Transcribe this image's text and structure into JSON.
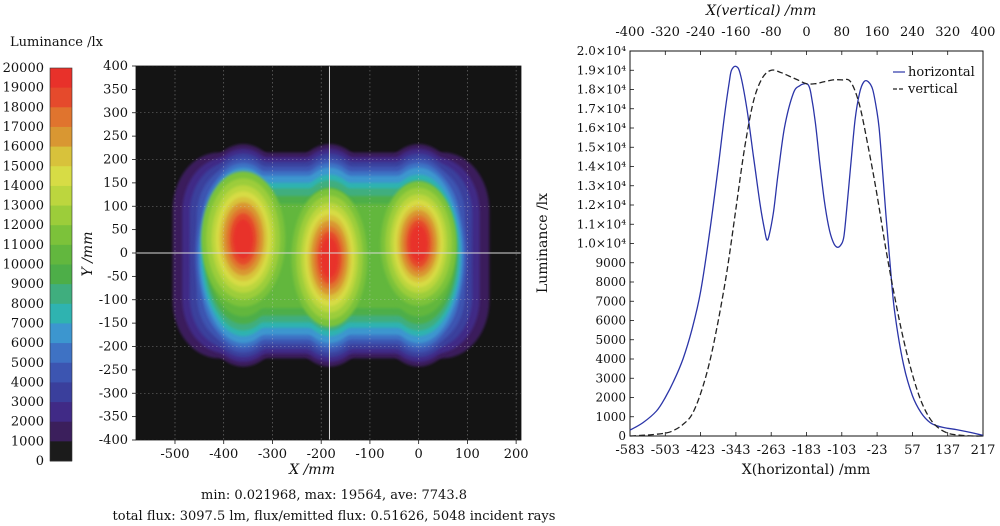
{
  "chart_data": [
    {
      "type": "heatmap",
      "colorbar": {
        "title": "Luminance /lx",
        "ticks": [
          20000,
          19000,
          18000,
          17000,
          16000,
          15000,
          14000,
          13000,
          12000,
          11000,
          10000,
          9000,
          8000,
          7000,
          6000,
          5000,
          4000,
          3000,
          2000,
          1000,
          0
        ],
        "colors": [
          "#e8312a",
          "#e54a2c",
          "#e0742e",
          "#d99732",
          "#d8c23b",
          "#d7dc45",
          "#bcd63e",
          "#9ccd3a",
          "#7cc23a",
          "#62b73e",
          "#4dae48",
          "#3fae7e",
          "#2fb3b0",
          "#3c96cf",
          "#3e72c4",
          "#3c55b1",
          "#3a3f9c",
          "#402a86",
          "#3b1f5c",
          "#1b1b1b"
        ]
      },
      "xlabel": "X /mm",
      "ylabel": "Y /mm",
      "xlim": [
        -580,
        210
      ],
      "ylim": [
        -400,
        400
      ],
      "xticks": [
        "-500",
        "-400",
        "-300",
        "-200",
        "-100",
        "0",
        "100",
        "200"
      ],
      "yticks": [
        "400",
        "350",
        "300",
        "250",
        "200",
        "150",
        "100",
        "50",
        "0",
        "-50",
        "-100",
        "-150",
        "-200",
        "-250",
        "-300",
        "-350",
        "-400"
      ],
      "hotspots": [
        {
          "x": -360,
          "y": 30,
          "peak": 19564
        },
        {
          "x": -183,
          "y": 0,
          "peak": 18500
        },
        {
          "x": 0,
          "y": 20,
          "peak": 18400
        }
      ],
      "stats_line1": "min: 0.021968, max: 19564, ave: 7743.8",
      "stats_line2": "total flux: 3097.5 lm, flux/emitted flux: 0.51626, 5048 incident rays"
    },
    {
      "type": "line",
      "top_xlabel": "X(vertical) /mm",
      "xlabel": "X(horizontal) /mm",
      "ylabel": "Luminance /lx",
      "xlim": [
        -583,
        217
      ],
      "top_xlim": [
        -400,
        400
      ],
      "ylim": [
        0,
        20000
      ],
      "bottom_ticks": [
        "-583",
        "-503",
        "-423",
        "-343",
        "-263",
        "-183",
        "-103",
        "-23",
        "57",
        "137",
        "217"
      ],
      "top_ticks": [
        "-400",
        "-320",
        "-240",
        "-160",
        "-80",
        "0",
        "80",
        "160",
        "240",
        "320",
        "400"
      ],
      "yticks": [
        "0",
        "1000",
        "2000",
        "3000",
        "4000",
        "5000",
        "6000",
        "7000",
        "8000",
        "9000",
        "1.0×10⁴",
        "1.1×10⁴",
        "1.2×10⁴",
        "1.3×10⁴",
        "1.4×10⁴",
        "1.5×10⁴",
        "1.6×10⁴",
        "1.7×10⁴",
        "1.8×10⁴",
        "1.9×10⁴",
        "2.0×10⁴"
      ],
      "series": [
        {
          "name": "horizontal",
          "color": "#2b35a8",
          "dash": "solid",
          "axis": "bottom",
          "x": [
            -583,
            -553,
            -523,
            -503,
            -483,
            -463,
            -443,
            -423,
            -403,
            -383,
            -368,
            -358,
            -353,
            -343,
            -333,
            -318,
            -303,
            -288,
            -278,
            -273,
            -268,
            -258,
            -248,
            -233,
            -213,
            -198,
            -188,
            -183,
            -178,
            -173,
            -163,
            -153,
            -143,
            -133,
            -123,
            -113,
            -103,
            -98,
            -93,
            -83,
            -73,
            -63,
            -53,
            -43,
            -33,
            -23,
            -18,
            -13,
            -3,
            7,
            17,
            37,
            57,
            77,
            97,
            117,
            137,
            157,
            177,
            197,
            217
          ],
          "y": [
            300,
            700,
            1300,
            2000,
            2900,
            4000,
            5500,
            7500,
            10500,
            14000,
            16800,
            18400,
            19000,
            19200,
            18800,
            17000,
            14500,
            12000,
            10700,
            10200,
            10400,
            11600,
            13500,
            16000,
            17800,
            18200,
            18300,
            18300,
            18200,
            17800,
            16300,
            14200,
            12300,
            10900,
            10100,
            9800,
            10000,
            10400,
            11500,
            14000,
            16400,
            17800,
            18400,
            18400,
            18000,
            16800,
            15900,
            14500,
            11500,
            8800,
            6400,
            3700,
            2100,
            1200,
            700,
            500,
            400,
            330,
            240,
            140,
            30
          ]
        },
        {
          "name": "vertical",
          "color": "#222222",
          "dash": "dashed",
          "axis": "top",
          "x": [
            -400,
            -360,
            -320,
            -300,
            -280,
            -260,
            -240,
            -220,
            -200,
            -180,
            -160,
            -140,
            -120,
            -100,
            -80,
            -60,
            -40,
            -20,
            0,
            20,
            40,
            60,
            80,
            100,
            120,
            140,
            160,
            180,
            200,
            220,
            240,
            260,
            280,
            300,
            320,
            340,
            360,
            380,
            400
          ],
          "y": [
            0,
            50,
            150,
            300,
            600,
            1100,
            2200,
            3800,
            6000,
            8600,
            11800,
            15000,
            17400,
            18600,
            19000,
            18900,
            18700,
            18500,
            18300,
            18300,
            18400,
            18500,
            18500,
            18400,
            17200,
            15000,
            12500,
            9700,
            7200,
            5000,
            3200,
            1800,
            900,
            400,
            150,
            60,
            20,
            0,
            0
          ]
        }
      ]
    }
  ]
}
